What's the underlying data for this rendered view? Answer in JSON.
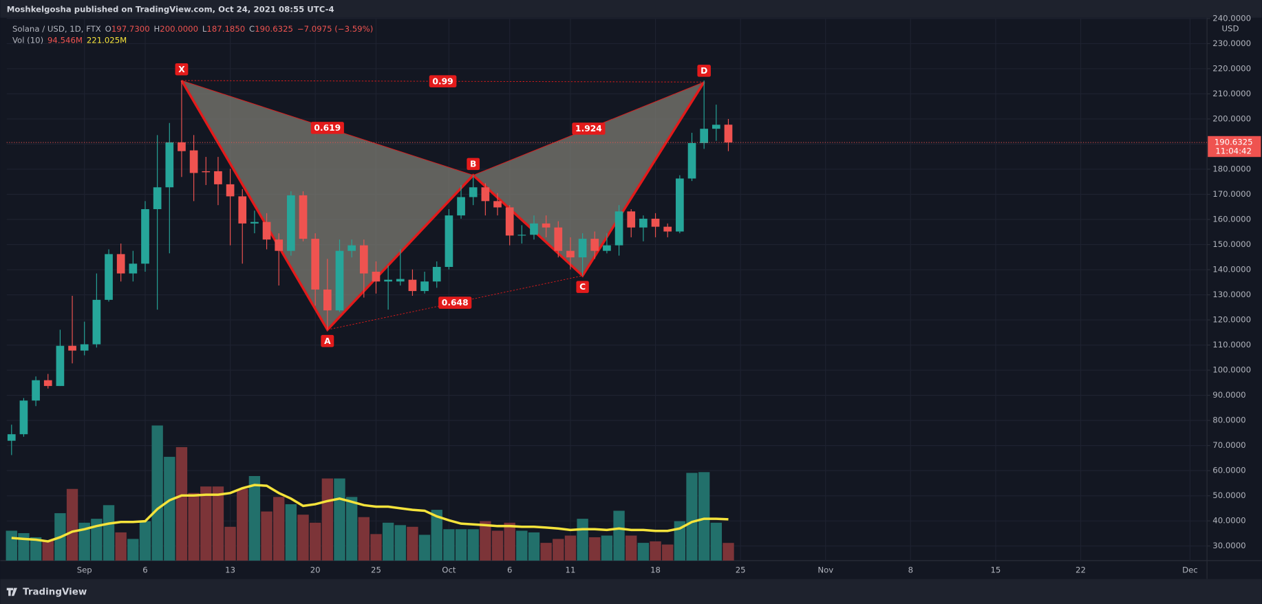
{
  "header": {
    "published": "Moshkelgosha published on TradingView.com, Oct 24, 2021 08:55 UTC-4"
  },
  "chart_data": {
    "type": "candlestick",
    "symbol": "Solana / USD, 1D, FTX",
    "ohlc_legend": [
      {
        "key": "O",
        "value": "197.7300"
      },
      {
        "key": "H",
        "value": "200.0000"
      },
      {
        "key": "L",
        "value": "187.1850"
      },
      {
        "key": "C",
        "value": "190.6325"
      }
    ],
    "change": "−7.0975 (−3.59%)",
    "volume_legend": {
      "name": "Vol (10)",
      "value": "94.546M",
      "ma": "221.025M"
    },
    "x": [
      "2021-08-26",
      "2021-08-27",
      "2021-08-28",
      "2021-08-29",
      "2021-08-30",
      "2021-08-31",
      "2021-09-01",
      "2021-09-02",
      "2021-09-03",
      "2021-09-04",
      "2021-09-05",
      "2021-09-06",
      "2021-09-07",
      "2021-09-08",
      "2021-09-09",
      "2021-09-10",
      "2021-09-11",
      "2021-09-12",
      "2021-09-13",
      "2021-09-14",
      "2021-09-15",
      "2021-09-16",
      "2021-09-17",
      "2021-09-18",
      "2021-09-19",
      "2021-09-20",
      "2021-09-21",
      "2021-09-22",
      "2021-09-23",
      "2021-09-24",
      "2021-09-25",
      "2021-09-26",
      "2021-09-27",
      "2021-09-28",
      "2021-09-29",
      "2021-09-30",
      "2021-10-01",
      "2021-10-02",
      "2021-10-03",
      "2021-10-04",
      "2021-10-05",
      "2021-10-06",
      "2021-10-07",
      "2021-10-08",
      "2021-10-09",
      "2021-10-10",
      "2021-10-11",
      "2021-10-12",
      "2021-10-13",
      "2021-10-14",
      "2021-10-15",
      "2021-10-16",
      "2021-10-17",
      "2021-10-18",
      "2021-10-19",
      "2021-10-20",
      "2021-10-21",
      "2021-10-22",
      "2021-10-23",
      "2021-10-24"
    ],
    "open": [
      71.9,
      74.5,
      87.9,
      96,
      93.7,
      109.7,
      107.8,
      110.3,
      128,
      146.2,
      138.5,
      142.4,
      164.1,
      172.8,
      190.7,
      187.5,
      179.2,
      179.2,
      174,
      169.2,
      158.4,
      159,
      152,
      147.5,
      169.6,
      152.3,
      132.1,
      123.8,
      147.5,
      149.7,
      139.2,
      135.3,
      135.3,
      136,
      131.5,
      135.3,
      141.1,
      161.6,
      168.9,
      172.8,
      167.3,
      164.8,
      153.6,
      153.9,
      158.4,
      156.8,
      147.5,
      144.9,
      152.3,
      147.5,
      149.7,
      163.2,
      156.8,
      160.3,
      157.1,
      155.2,
      176.3,
      190.4,
      196.1,
      197.73
    ],
    "high": [
      78.3,
      88.9,
      97.5,
      98.5,
      116.1,
      129.6,
      119.3,
      138.5,
      148.1,
      150.4,
      147.5,
      167.3,
      193.6,
      198.4,
      215.3,
      193.6,
      184.9,
      184.9,
      180.1,
      172.1,
      163.5,
      162.5,
      154.5,
      171.2,
      171.2,
      154.5,
      144.3,
      152,
      152,
      152,
      143.3,
      141.7,
      148.1,
      140.1,
      139.2,
      143.3,
      164.1,
      173.7,
      177.6,
      174.4,
      170.5,
      165.7,
      157.7,
      161.6,
      161.6,
      159.3,
      152.9,
      154.5,
      155.2,
      154.5,
      165.7,
      164.1,
      161.6,
      162.5,
      158.4,
      177.6,
      194.5,
      215.3,
      205.7,
      200
    ],
    "low": [
      66.2,
      73.5,
      85.7,
      92.7,
      93.7,
      102.7,
      105.9,
      109,
      127.3,
      135.3,
      135.3,
      139.2,
      124.1,
      146.5,
      176.9,
      167.3,
      173.7,
      165.7,
      149.7,
      142.4,
      154.5,
      148.1,
      133.7,
      145.6,
      151.3,
      125.7,
      116.1,
      123.2,
      144.9,
      128.9,
      130.5,
      124.1,
      133.7,
      129.6,
      130.5,
      132.8,
      140.1,
      160.3,
      165.7,
      161.6,
      161.6,
      149.7,
      150.4,
      152,
      152.9,
      144.9,
      140.1,
      137.6,
      144.3,
      146.5,
      145.6,
      152.9,
      151.3,
      152.9,
      152.9,
      154.5,
      175.3,
      188.1,
      191.3,
      187.185
    ],
    "close": [
      74.5,
      87.9,
      96,
      93.7,
      109.7,
      107.8,
      110.3,
      128,
      146.2,
      138.5,
      142.4,
      164.1,
      172.8,
      190.7,
      187.2,
      178.5,
      178.8,
      174,
      169.2,
      158.4,
      159,
      152,
      147.5,
      169.6,
      152.3,
      132.1,
      123.8,
      147.5,
      149.7,
      138.5,
      135.3,
      136,
      136.3,
      131.5,
      135.3,
      141.1,
      161.6,
      168.9,
      172.8,
      167.3,
      164.8,
      153.6,
      153.9,
      158.4,
      156.8,
      147.5,
      144.9,
      152.3,
      147.5,
      149.7,
      163.2,
      156.8,
      160.3,
      157.1,
      155.2,
      176.3,
      190.4,
      196.1,
      197.7,
      190.6325
    ],
    "colors": {
      "up": "#26a69a",
      "down": "#ef5350",
      "volume_up": "#22706b",
      "volume_down": "#7c3438"
    },
    "volume": {
      "values": [
        160,
        147,
        125,
        108,
        254,
        384,
        203,
        224,
        297,
        151,
        116,
        211,
        724,
        556,
        608,
        362,
        397,
        397,
        181,
        384,
        453,
        263,
        341,
        302,
        246,
        203,
        440,
        440,
        341,
        233,
        142,
        203,
        190,
        181,
        138,
        272,
        168,
        168,
        168,
        211,
        160,
        203,
        160,
        151,
        95,
        116,
        134,
        224,
        125,
        134,
        267,
        134,
        95,
        103,
        86,
        211,
        470,
        474,
        203,
        94.546
      ],
      "ma": [
        121,
        116,
        112,
        103,
        125,
        155,
        168,
        185,
        198,
        207,
        207,
        211,
        276,
        323,
        349,
        349,
        353,
        353,
        362,
        388,
        405,
        401,
        362,
        332,
        293,
        302,
        319,
        332,
        315,
        297,
        289,
        289,
        280,
        272,
        267,
        237,
        216,
        198,
        194,
        190,
        185,
        185,
        181,
        181,
        177,
        172,
        164,
        168,
        168,
        164,
        172,
        164,
        164,
        159,
        159,
        172,
        207,
        224,
        224,
        221.025
      ],
      "ma_color": "#f5e33b"
    },
    "ylim": [
      24.2,
      240
    ],
    "yticks": [
      {
        "value": 30,
        "label": "30.0000"
      },
      {
        "value": 40,
        "label": "40.0000"
      },
      {
        "value": 50,
        "label": "50.0000"
      },
      {
        "value": 60,
        "label": "60.0000"
      },
      {
        "value": 70,
        "label": "70.0000"
      },
      {
        "value": 80,
        "label": "80.0000"
      },
      {
        "value": 90,
        "label": "90.0000"
      },
      {
        "value": 100,
        "label": "100.0000"
      },
      {
        "value": 110,
        "label": "110.0000"
      },
      {
        "value": 120,
        "label": "120.0000"
      },
      {
        "value": 130,
        "label": "130.0000"
      },
      {
        "value": 140,
        "label": "140.0000"
      },
      {
        "value": 150,
        "label": "150.0000"
      },
      {
        "value": 160,
        "label": "160.0000"
      },
      {
        "value": 170,
        "label": "170.0000"
      },
      {
        "value": 180,
        "label": "180.0000"
      },
      {
        "value": 190,
        "label": "190.0000"
      },
      {
        "value": 200,
        "label": "200.0000"
      },
      {
        "value": 210,
        "label": "210.0000"
      },
      {
        "value": 220,
        "label": "220.0000"
      },
      {
        "value": 230,
        "label": "230.0000"
      },
      {
        "value": 240,
        "label": "240.0000"
      }
    ],
    "y_unit": "USD",
    "xlim": [
      "2021-08-26",
      "2021-12-02"
    ],
    "xticks": [
      {
        "value": "2021-09-01",
        "label": "Sep"
      },
      {
        "value": "2021-09-06",
        "label": "6"
      },
      {
        "value": "2021-09-13",
        "label": "13"
      },
      {
        "value": "2021-09-20",
        "label": "20"
      },
      {
        "value": "2021-09-25",
        "label": "25"
      },
      {
        "value": "2021-10-01",
        "label": "Oct"
      },
      {
        "value": "2021-10-06",
        "label": "6"
      },
      {
        "value": "2021-10-11",
        "label": "11"
      },
      {
        "value": "2021-10-18",
        "label": "18"
      },
      {
        "value": "2021-10-25",
        "label": "25"
      },
      {
        "value": "2021-11-01",
        "label": "Nov"
      },
      {
        "value": "2021-11-08",
        "label": "8"
      },
      {
        "value": "2021-11-15",
        "label": "15"
      },
      {
        "value": "2021-11-22",
        "label": "22"
      },
      {
        "value": "2021-12-01",
        "label": "Dec"
      }
    ],
    "grid": true,
    "last_price": {
      "value": 190.6325,
      "countdown": "11:04:42"
    },
    "pattern": {
      "labels": [
        "X",
        "A",
        "B",
        "C",
        "D"
      ],
      "x": [
        "2021-09-09",
        "2021-09-21",
        "2021-10-03",
        "2021-10-12",
        "2021-10-22"
      ],
      "y": [
        215.3,
        116.1,
        177.6,
        137.6,
        214.7
      ],
      "ratios": [
        0.619,
        0.648,
        1.924,
        0.99
      ],
      "color": "#e31b1b"
    }
  },
  "footer": {
    "brand": "TradingView"
  }
}
